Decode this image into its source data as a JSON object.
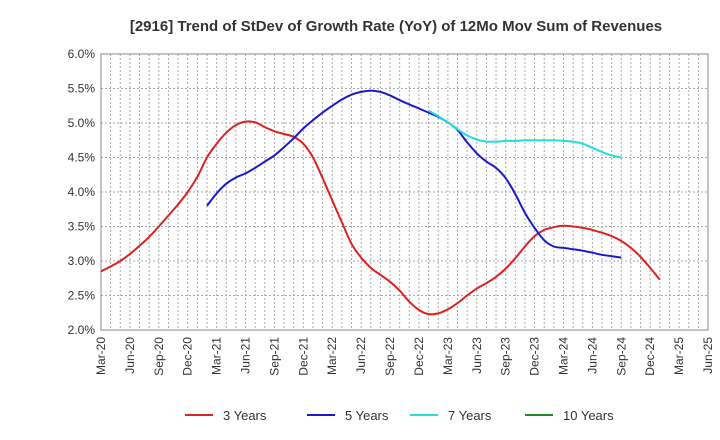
{
  "chart_data": {
    "type": "line",
    "title": "[2916]  Trend of StDev of Growth Rate (YoY) of 12Mo Mov Sum of Revenues",
    "xlabel": "",
    "ylabel": "",
    "ylim": [
      2.0,
      6.0
    ],
    "y_ticks": [
      "2.0%",
      "2.5%",
      "3.0%",
      "3.5%",
      "4.0%",
      "4.5%",
      "5.0%",
      "5.5%",
      "6.0%"
    ],
    "x_ticks": [
      "Mar-20",
      "Jun-20",
      "Sep-20",
      "Dec-20",
      "Mar-21",
      "Jun-21",
      "Sep-21",
      "Dec-21",
      "Mar-22",
      "Jun-22",
      "Sep-22",
      "Dec-22",
      "Mar-23",
      "Jun-23",
      "Sep-23",
      "Dec-23",
      "Mar-24",
      "Jun-24",
      "Sep-24",
      "Dec-24",
      "Mar-25",
      "Jun-25"
    ],
    "grid": true,
    "legend_position": "bottom",
    "series": [
      {
        "name": "3 Years",
        "color": "#dd2222",
        "start_index": 0,
        "values": [
          2.85,
          2.92,
          3.0,
          3.1,
          3.22,
          3.35,
          3.5,
          3.66,
          3.82,
          4.0,
          4.22,
          4.5,
          4.7,
          4.86,
          4.97,
          5.02,
          5.01,
          4.94,
          4.88,
          4.84,
          4.8,
          4.7,
          4.5,
          4.2,
          3.88,
          3.56,
          3.25,
          3.05,
          2.9,
          2.8,
          2.7,
          2.57,
          2.41,
          2.29,
          2.23,
          2.24,
          2.3,
          2.39,
          2.5,
          2.6,
          2.68,
          2.77,
          2.89,
          3.04,
          3.21,
          3.36,
          3.45,
          3.49,
          3.51,
          3.5,
          3.48,
          3.45,
          3.41,
          3.36,
          3.29,
          3.19,
          3.06,
          2.9,
          2.73
        ]
      },
      {
        "name": "5 Years",
        "color": "#1a1acc",
        "start_index": 11,
        "values": [
          3.8,
          3.98,
          4.12,
          4.21,
          4.27,
          4.35,
          4.44,
          4.53,
          4.65,
          4.78,
          4.92,
          5.04,
          5.15,
          5.25,
          5.34,
          5.41,
          5.45,
          5.47,
          5.45,
          5.4,
          5.33,
          5.27,
          5.21,
          5.15,
          5.09,
          5.01,
          4.9,
          4.72,
          4.56,
          4.44,
          4.35,
          4.2,
          3.97,
          3.7,
          3.48,
          3.3,
          3.21,
          3.19,
          3.17,
          3.15,
          3.12,
          3.09,
          3.07,
          3.05
        ]
      },
      {
        "name": "7 Years",
        "color": "#22dddd",
        "start_index": 34,
        "values": [
          5.18,
          5.1,
          5.01,
          4.91,
          4.82,
          4.76,
          4.73,
          4.73,
          4.74,
          4.74,
          4.75,
          4.75,
          4.75,
          4.75,
          4.74,
          4.73,
          4.7,
          4.64,
          4.58,
          4.53,
          4.5
        ]
      },
      {
        "name": "10 Years",
        "color": "#228822",
        "start_index": 0,
        "values": []
      }
    ]
  }
}
